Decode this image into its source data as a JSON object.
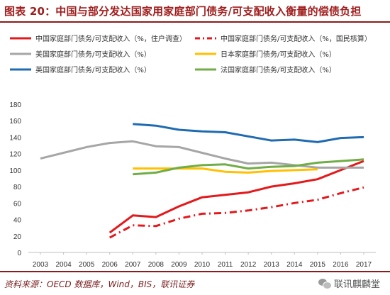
{
  "header": {
    "title": "图表 20：中国与部分发达国家用家庭部门债务/可支配收入衡量的偿债负担"
  },
  "footer": {
    "source": "资料来源：OECD 数据库，Wind，BIS，联讯证券",
    "watermark": "联讯麒麟堂",
    "watermark_icon": "wechat-icon"
  },
  "chart_data": {
    "type": "line",
    "x": [
      2003,
      2004,
      2005,
      2006,
      2007,
      2008,
      2009,
      2010,
      2011,
      2012,
      2013,
      2014,
      2015,
      2016,
      2017
    ],
    "ylim": [
      0,
      180
    ],
    "yticks": [
      0,
      20,
      40,
      60,
      80,
      100,
      120,
      140,
      160,
      180
    ],
    "grid": false,
    "legend_position": "top",
    "series": [
      {
        "name": "中国家庭部门债务/可支配收入（%，住户调查）",
        "color": "#e3191c",
        "style": "solid",
        "values": [
          null,
          null,
          null,
          24,
          45,
          43,
          56,
          67,
          70,
          73,
          80,
          84,
          89,
          100,
          111
        ]
      },
      {
        "name": "中国家庭部门债务/可支配收入（%，国民核算）",
        "color": "#e3191c",
        "style": "dashdot",
        "values": [
          null,
          null,
          null,
          18,
          33,
          32,
          41,
          47,
          48,
          51,
          55,
          60,
          64,
          72,
          79
        ]
      },
      {
        "name": "美国家庭部门债务/可支配收入（%）",
        "color": "#a6a6a6",
        "style": "solid",
        "values": [
          114,
          121,
          128,
          133,
          135,
          129,
          128,
          121,
          114,
          108,
          109,
          106,
          103,
          103,
          103
        ]
      },
      {
        "name": "日本家庭部门债务/可支配收入（%）",
        "color": "#ffc000",
        "style": "solid",
        "values": [
          null,
          null,
          null,
          null,
          102,
          102,
          102,
          102,
          98,
          97,
          99,
          100,
          101,
          null,
          null
        ]
      },
      {
        "name": "英国家庭部门债务/可支配收入（%）",
        "color": "#1f6bb2",
        "style": "solid",
        "values": [
          null,
          null,
          null,
          null,
          156,
          154,
          149,
          147,
          146,
          141,
          136,
          137,
          134,
          139,
          140
        ]
      },
      {
        "name": "法国家庭部门债务/可支配收入（%）",
        "color": "#70ad47",
        "style": "solid",
        "values": [
          null,
          null,
          null,
          null,
          95,
          97,
          103,
          106,
          107,
          102,
          104,
          105,
          109,
          111,
          113
        ]
      }
    ]
  }
}
